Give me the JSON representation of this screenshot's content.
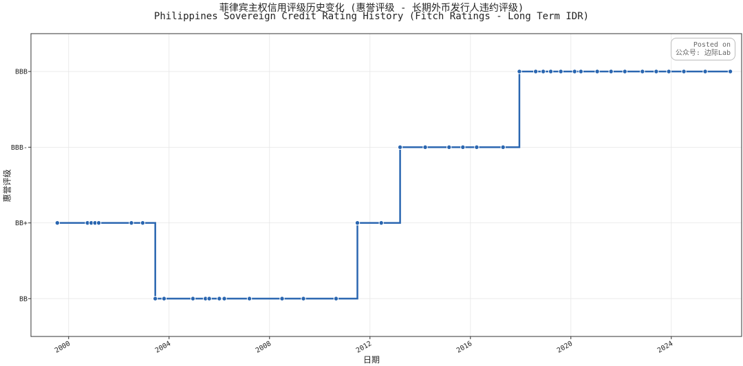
{
  "chart_data": {
    "type": "line",
    "step": true,
    "title": "菲律宾主权信用评级历史变化 (惠誉评级 - 长期外币发行人违约评级)",
    "subtitle": "Philippines Sovereign Credit Rating History (Fitch Ratings - Long Term IDR)",
    "xlabel": "日期",
    "ylabel": "惠誉评级",
    "x_ticks": [
      "2000",
      "2004",
      "2008",
      "2012",
      "2016",
      "2020",
      "2024"
    ],
    "y_ticks": [
      "BB",
      "BB+",
      "BBB-",
      "BBB"
    ],
    "xlim": [
      1998.5,
      2026.8
    ],
    "ylim": [
      -0.5,
      3.5
    ],
    "grid": true,
    "line_color": "#2a66b0",
    "series": [
      {
        "values": [
          [
            "1999.55",
            1
          ],
          [
            "2000.75",
            1
          ],
          [
            "2000.9",
            1
          ],
          [
            "2001.05",
            1
          ],
          [
            "2001.2",
            1
          ],
          [
            "2002.5",
            1
          ],
          [
            "2002.95",
            1
          ],
          [
            "2003.45",
            0
          ],
          [
            "2003.8",
            0
          ],
          [
            "2004.95",
            0
          ],
          [
            "2005.45",
            0
          ],
          [
            "2005.6",
            0
          ],
          [
            "2006.0",
            0
          ],
          [
            "2006.2",
            0
          ],
          [
            "2007.2",
            0
          ],
          [
            "2008.5",
            0
          ],
          [
            "2009.35",
            0
          ],
          [
            "2010.65",
            0
          ],
          [
            "2011.5",
            1
          ],
          [
            "2012.45",
            1
          ],
          [
            "2013.2",
            2
          ],
          [
            "2014.2",
            2
          ],
          [
            "2015.15",
            2
          ],
          [
            "2015.7",
            2
          ],
          [
            "2016.25",
            2
          ],
          [
            "2017.3",
            2
          ],
          [
            "2017.95",
            3
          ],
          [
            "2018.6",
            3
          ],
          [
            "2018.9",
            3
          ],
          [
            "2019.2",
            3
          ],
          [
            "2019.6",
            3
          ],
          [
            "2020.15",
            3
          ],
          [
            "2020.4",
            3
          ],
          [
            "2021.05",
            3
          ],
          [
            "2021.6",
            3
          ],
          [
            "2022.15",
            3
          ],
          [
            "2022.85",
            3
          ],
          [
            "2023.4",
            3
          ],
          [
            "2023.9",
            3
          ],
          [
            "2024.5",
            3
          ],
          [
            "2025.35",
            3
          ],
          [
            "2026.35",
            3
          ]
        ]
      }
    ]
  },
  "watermark": {
    "line1": "Posted on",
    "line2": "公众号: 边际Lab"
  }
}
